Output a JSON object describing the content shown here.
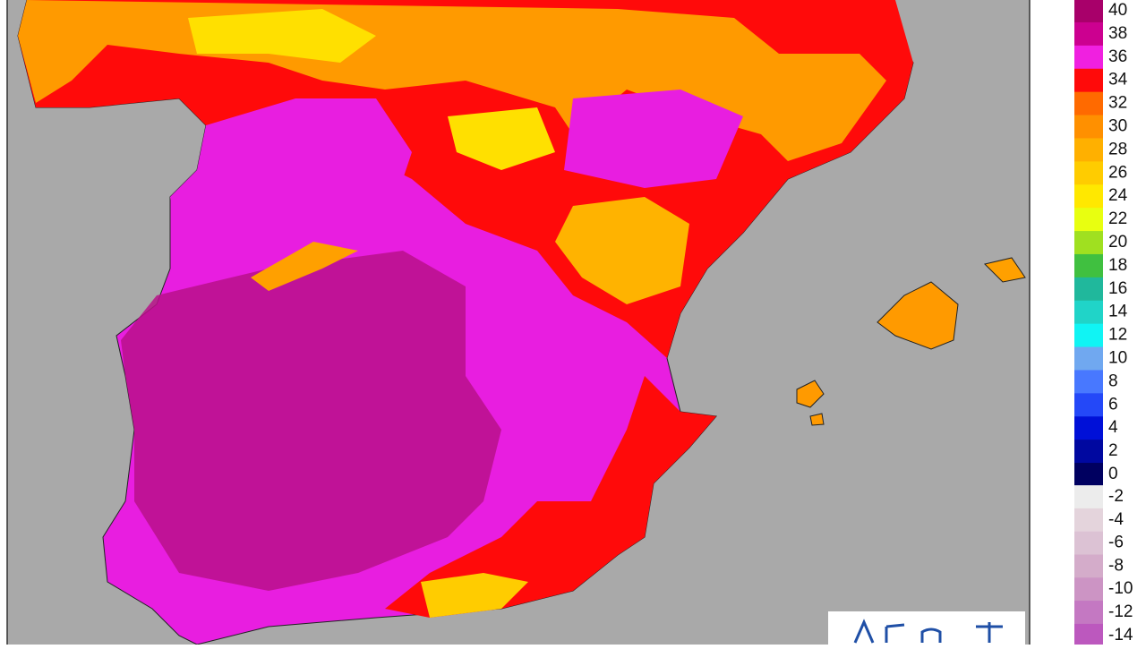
{
  "legend": {
    "positive_scale": [
      {
        "label": 40,
        "color": "#a8006a"
      },
      {
        "label": 38,
        "color": "#cc0090"
      },
      {
        "label": 36,
        "color": "#f020e0"
      },
      {
        "label": 34,
        "color": "#ff0a0a"
      },
      {
        "label": 32,
        "color": "#ff6a00"
      },
      {
        "label": 30,
        "color": "#ff9000"
      },
      {
        "label": 28,
        "color": "#ffb000"
      },
      {
        "label": 26,
        "color": "#ffcc00"
      },
      {
        "label": 24,
        "color": "#ffe800"
      },
      {
        "label": 22,
        "color": "#e8ff10"
      },
      {
        "label": 20,
        "color": "#a0e020"
      },
      {
        "label": 18,
        "color": "#40c040"
      },
      {
        "label": 16,
        "color": "#20b89c"
      },
      {
        "label": 14,
        "color": "#20d4c8"
      },
      {
        "label": 12,
        "color": "#10f4f4"
      },
      {
        "label": 10,
        "color": "#70a8f0"
      },
      {
        "label": 8,
        "color": "#4878ff"
      },
      {
        "label": 6,
        "color": "#2448f8"
      },
      {
        "label": 4,
        "color": "#0010d8"
      },
      {
        "label": 2,
        "color": "#0008a0"
      },
      {
        "label": 0,
        "color": "#000060"
      }
    ],
    "negative_scale": [
      {
        "label": -2,
        "color": "#ececec"
      },
      {
        "label": -4,
        "color": "#e4d4dc"
      },
      {
        "label": -6,
        "color": "#dcc2d4"
      },
      {
        "label": -8,
        "color": "#d4acca"
      },
      {
        "label": -10,
        "color": "#cc94c4"
      },
      {
        "label": -12,
        "color": "#c478c2"
      },
      {
        "label": -14,
        "color": "#bc58be"
      }
    ]
  }
}
